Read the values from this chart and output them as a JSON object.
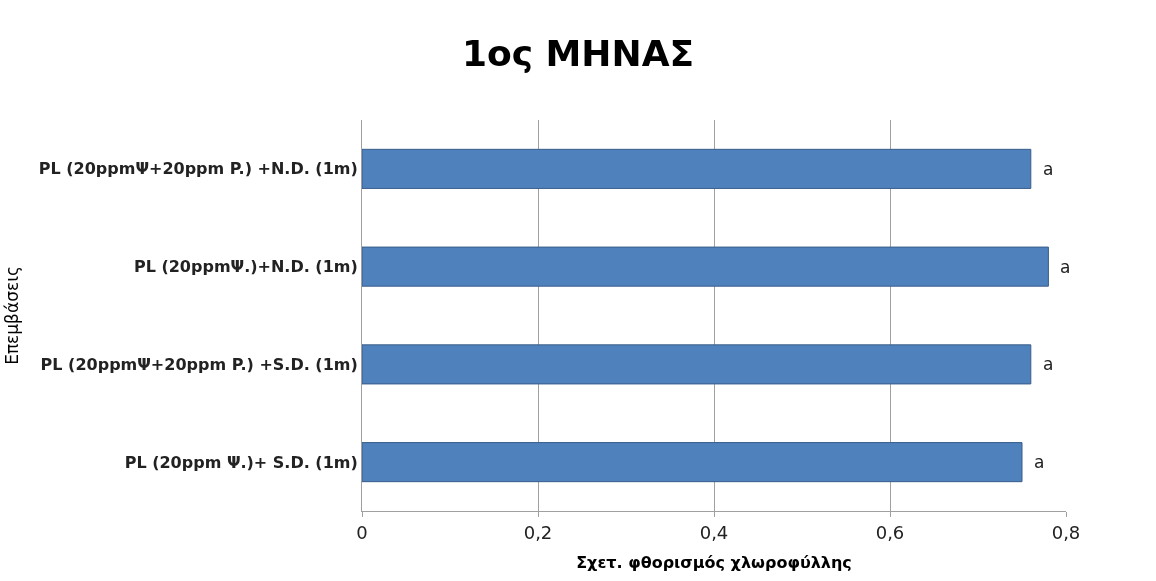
{
  "chart_data": {
    "type": "bar",
    "orientation": "horizontal",
    "title": "1ος ΜΗΝΑΣ",
    "xlabel": "Σχετ. φθορισμός χλωροφύλλης",
    "ylabel": "Επεμβάσεις",
    "categories": [
      "PL (20ppmΨ+20ppm P.) +N.D. (1m)",
      "PL (20ppmΨ.)+N.D. (1m)",
      "PL (20ppmΨ+20ppm P.) +S.D. (1m)",
      "PL (20ppm Ψ.)+ S.D. (1m)"
    ],
    "values": [
      0.76,
      0.78,
      0.76,
      0.75
    ],
    "color": "#4f81bd",
    "xlim": [
      0,
      0.8
    ],
    "xticks": [
      {
        "value": 0,
        "label": "0"
      },
      {
        "value": 0.2,
        "label": "0,2"
      },
      {
        "value": 0.4,
        "label": "0,4"
      },
      {
        "value": 0.6,
        "label": "0,6"
      },
      {
        "value": 0.8,
        "label": "0,8"
      }
    ],
    "grid": "x",
    "annotations": [
      {
        "text": "a",
        "x": 0.76,
        "y": "PL (20ppmΨ+20ppm P.) +N.D. (1m)"
      },
      {
        "text": "a",
        "x": 0.78,
        "y": "PL (20ppmΨ.)+N.D. (1m)"
      },
      {
        "text": "a",
        "x": 0.76,
        "y": "PL (20ppmΨ+20ppm P.) +S.D. (1m)"
      },
      {
        "text": "a",
        "x": 0.75,
        "y": "PL (20ppm Ψ.)+ S.D. (1m)"
      }
    ]
  }
}
